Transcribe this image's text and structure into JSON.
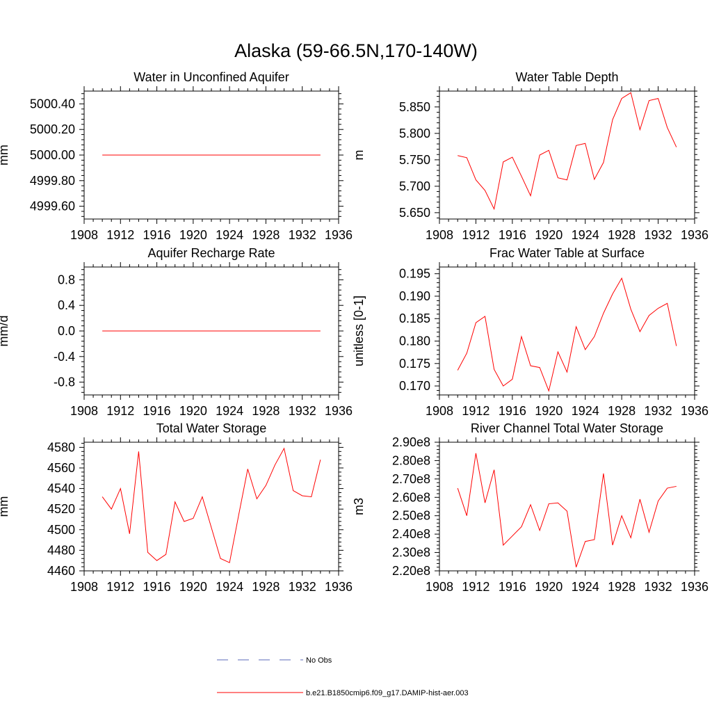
{
  "figure": {
    "title": "Alaska (59-66.5N,170-140W)"
  },
  "legend": {
    "items": [
      {
        "label": "No Obs",
        "color": "#5a6ab8",
        "dash": true
      },
      {
        "label": "b.e21.B1850cmip6.f09_g17.DAMIP-hist-aer.003",
        "color": "#ff0000",
        "dash": false
      }
    ]
  },
  "chart_data": [
    {
      "type": "line",
      "title": "Water in Unconfined Aquifer",
      "ylabel": "mm",
      "xlim": [
        1908,
        1936
      ],
      "ylim": [
        4999.5,
        5000.5
      ],
      "xticks": [
        1908,
        1912,
        1916,
        1920,
        1924,
        1928,
        1932,
        1936
      ],
      "yticks": [
        4999.6,
        4999.8,
        5000.0,
        5000.2,
        5000.4
      ],
      "ytick_labels": [
        "4999.60",
        "4999.80",
        "5000.00",
        "5000.20",
        "5000.40"
      ],
      "x": [
        1910,
        1911,
        1912,
        1913,
        1914,
        1915,
        1916,
        1917,
        1918,
        1919,
        1920,
        1921,
        1922,
        1923,
        1924,
        1925,
        1926,
        1927,
        1928,
        1929,
        1930,
        1931,
        1932,
        1933,
        1934
      ],
      "series": [
        {
          "color": "#ff0000",
          "values": [
            5000,
            5000,
            5000,
            5000,
            5000,
            5000,
            5000,
            5000,
            5000,
            5000,
            5000,
            5000,
            5000,
            5000,
            5000,
            5000,
            5000,
            5000,
            5000,
            5000,
            5000,
            5000,
            5000,
            5000,
            5000
          ]
        }
      ]
    },
    {
      "type": "line",
      "title": "Water Table Depth",
      "ylabel": "m",
      "xlim": [
        1908,
        1936
      ],
      "ylim": [
        5.638,
        5.88
      ],
      "xticks": [
        1908,
        1912,
        1916,
        1920,
        1924,
        1928,
        1932,
        1936
      ],
      "yticks": [
        5.65,
        5.7,
        5.75,
        5.8,
        5.85
      ],
      "ytick_labels": [
        "5.650",
        "5.700",
        "5.750",
        "5.800",
        "5.850"
      ],
      "x": [
        1910,
        1911,
        1912,
        1913,
        1914,
        1915,
        1916,
        1917,
        1918,
        1919,
        1920,
        1921,
        1922,
        1923,
        1924,
        1925,
        1926,
        1927,
        1928,
        1929,
        1930,
        1931,
        1932,
        1933,
        1934
      ],
      "series": [
        {
          "color": "#ff0000",
          "values": [
            5.758,
            5.754,
            5.712,
            5.692,
            5.657,
            5.746,
            5.755,
            5.719,
            5.682,
            5.759,
            5.768,
            5.716,
            5.712,
            5.777,
            5.781,
            5.713,
            5.745,
            5.826,
            5.866,
            5.877,
            5.807,
            5.862,
            5.866,
            5.811,
            5.774
          ]
        }
      ]
    },
    {
      "type": "line",
      "title": "Aquifer Recharge Rate",
      "ylabel": "mm/d",
      "xlim": [
        1908,
        1936
      ],
      "ylim": [
        -1.0,
        1.0
      ],
      "xticks": [
        1908,
        1912,
        1916,
        1920,
        1924,
        1928,
        1932,
        1936
      ],
      "yticks": [
        -0.8,
        -0.4,
        0.0,
        0.4,
        0.8
      ],
      "ytick_labels": [
        "-0.8",
        "-0.4",
        "0.0",
        "0.4",
        "0.8"
      ],
      "x": [
        1910,
        1911,
        1912,
        1913,
        1914,
        1915,
        1916,
        1917,
        1918,
        1919,
        1920,
        1921,
        1922,
        1923,
        1924,
        1925,
        1926,
        1927,
        1928,
        1929,
        1930,
        1931,
        1932,
        1933,
        1934
      ],
      "series": [
        {
          "color": "#ff0000",
          "values": [
            0,
            0,
            0,
            0,
            0,
            0,
            0,
            0,
            0,
            0,
            0,
            0,
            0,
            0,
            0,
            0,
            0,
            0,
            0,
            0,
            0,
            0,
            0,
            0,
            0
          ]
        }
      ]
    },
    {
      "type": "line",
      "title": "Frac Water Table at Surface",
      "ylabel": "unitless [0-1]",
      "xlim": [
        1908,
        1936
      ],
      "ylim": [
        0.168,
        0.1965
      ],
      "xticks": [
        1908,
        1912,
        1916,
        1920,
        1924,
        1928,
        1932,
        1936
      ],
      "yticks": [
        0.17,
        0.175,
        0.18,
        0.185,
        0.19,
        0.195
      ],
      "ytick_labels": [
        "0.170",
        "0.175",
        "0.180",
        "0.185",
        "0.190",
        "0.195"
      ],
      "x": [
        1910,
        1911,
        1912,
        1913,
        1914,
        1915,
        1916,
        1917,
        1918,
        1919,
        1920,
        1921,
        1922,
        1923,
        1924,
        1925,
        1926,
        1927,
        1928,
        1929,
        1930,
        1931,
        1932,
        1933,
        1934
      ],
      "series": [
        {
          "color": "#ff0000",
          "values": [
            0.1735,
            0.1773,
            0.1841,
            0.1855,
            0.1737,
            0.17,
            0.1715,
            0.181,
            0.1745,
            0.1741,
            0.1689,
            0.1776,
            0.1731,
            0.1832,
            0.1781,
            0.181,
            0.1862,
            0.1905,
            0.194,
            0.1871,
            0.1821,
            0.1857,
            0.1873,
            0.1884,
            0.1789
          ]
        }
      ]
    },
    {
      "type": "line",
      "title": "Total Water Storage",
      "ylabel": "mm",
      "xlim": [
        1908,
        1936
      ],
      "ylim": [
        4460,
        4585
      ],
      "xticks": [
        1908,
        1912,
        1916,
        1920,
        1924,
        1928,
        1932,
        1936
      ],
      "yticks": [
        4460,
        4480,
        4500,
        4520,
        4540,
        4560,
        4580
      ],
      "ytick_labels": [
        "4460",
        "4480",
        "4500",
        "4520",
        "4540",
        "4560",
        "4580"
      ],
      "x": [
        1910,
        1911,
        1912,
        1913,
        1914,
        1915,
        1916,
        1917,
        1918,
        1919,
        1920,
        1921,
        1922,
        1923,
        1924,
        1925,
        1926,
        1927,
        1928,
        1929,
        1930,
        1931,
        1932,
        1933,
        1934
      ],
      "series": [
        {
          "color": "#ff0000",
          "values": [
            4532,
            4520,
            4540,
            4496,
            4576,
            4478,
            4470,
            4476,
            4527,
            4508,
            4511,
            4532,
            4502,
            4472,
            4468,
            4514,
            4559,
            4530,
            4543,
            4563,
            4579,
            4538,
            4533,
            4532,
            4568
          ]
        }
      ]
    },
    {
      "type": "line",
      "title": "River Channel Total Water Storage",
      "ylabel": "m3",
      "xlim": [
        1908,
        1936
      ],
      "ylim": [
        220000000.0,
        290000000.0
      ],
      "xticks": [
        1908,
        1912,
        1916,
        1920,
        1924,
        1928,
        1932,
        1936
      ],
      "yticks": [
        220000000.0,
        230000000.0,
        240000000.0,
        250000000.0,
        260000000.0,
        270000000.0,
        280000000.0,
        290000000.0
      ],
      "ytick_labels": [
        "2.20e8",
        "2.30e8",
        "2.40e8",
        "2.50e8",
        "2.60e8",
        "2.70e8",
        "2.80e8",
        "2.90e8"
      ],
      "x": [
        1910,
        1911,
        1912,
        1913,
        1914,
        1915,
        1916,
        1917,
        1918,
        1919,
        1920,
        1921,
        1922,
        1923,
        1924,
        1925,
        1926,
        1927,
        1928,
        1929,
        1930,
        1931,
        1932,
        1933,
        1934
      ],
      "series": [
        {
          "color": "#ff0000",
          "values": [
            265000000.0,
            250000000.0,
            284000000.0,
            257000000.0,
            275000000.0,
            234000000.0,
            239000000.0,
            244000000.0,
            256000000.0,
            242000000.0,
            256500000.0,
            257000000.0,
            252500000.0,
            222000000.0,
            236000000.0,
            237000000.0,
            273000000.0,
            234000000.0,
            250000000.0,
            238000000.0,
            259000000.0,
            241000000.0,
            258000000.0,
            265000000.0,
            266000000.0
          ]
        }
      ]
    }
  ]
}
